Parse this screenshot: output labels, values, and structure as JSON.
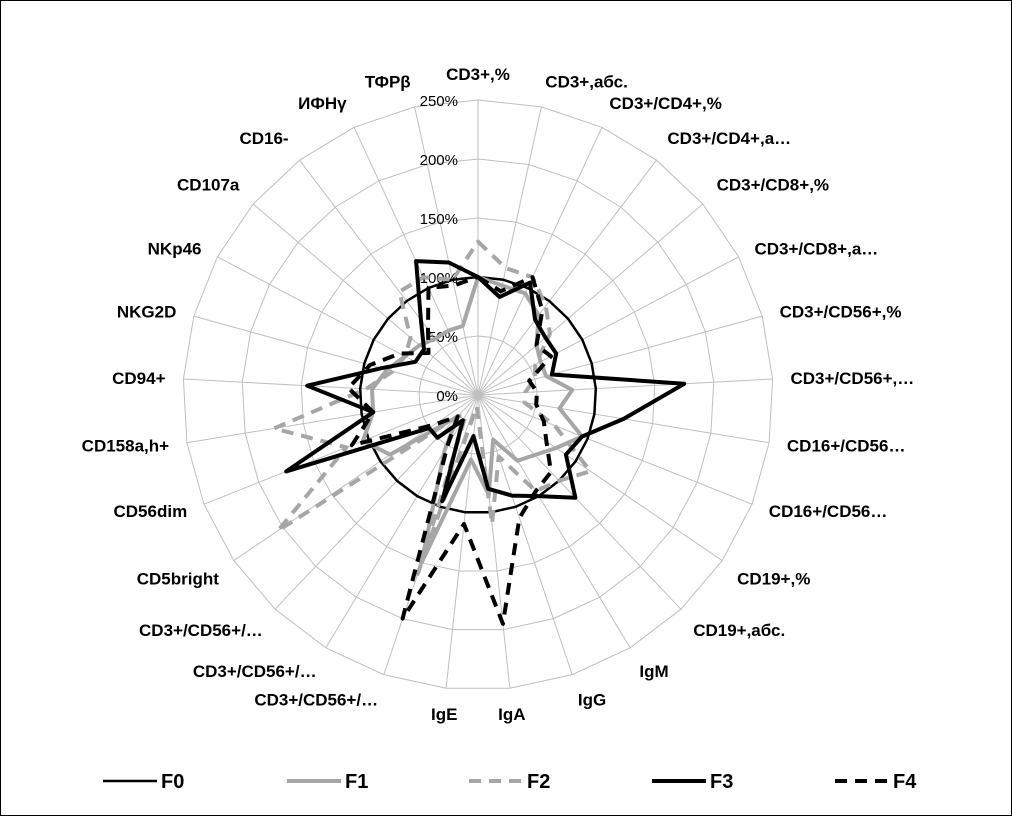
{
  "chart_data": {
    "type": "radar",
    "categories": [
      "CD3+,%",
      "CD3+,абс.",
      "CD3+/CD4+,%",
      "CD3+/CD4+,а…",
      "CD3+/CD8+,%",
      "CD3+/CD8+,а…",
      "CD3+/CD56+,%",
      "CD3+/CD56+,…",
      "CD16+/CD56…",
      "CD16+/CD56…",
      "CD19+,%",
      "CD19+,абс.",
      "IgM",
      "IgG",
      "IgA",
      "IgE",
      "CD3+/CD56+/…",
      "CD3+/CD56+/…",
      "CD3+/CD56+/…",
      "CD5bright",
      "CD56dim",
      "CD158a,h+",
      "CD94+",
      "NKG2D",
      "NKp46",
      "CD107a",
      "CD16-",
      "ИФНγ",
      "ТФРβ"
    ],
    "r_ticks": [
      "0%",
      "50%",
      "100%",
      "150%",
      "200%",
      "250%"
    ],
    "r_max": 250,
    "grid": true,
    "legend_position": "bottom",
    "series": [
      {
        "name": "F0",
        "color": "#000000",
        "style": "thin-solid",
        "values": [
          100,
          100,
          100,
          100,
          100,
          100,
          100,
          100,
          100,
          100,
          100,
          100,
          100,
          100,
          100,
          100,
          100,
          100,
          100,
          100,
          100,
          100,
          100,
          100,
          100,
          100,
          100,
          100,
          100
        ]
      },
      {
        "name": "F1",
        "color": "#a6a6a6",
        "style": "thick-solid",
        "values": [
          100,
          95,
          95,
          85,
          65,
          60,
          60,
          80,
          70,
          95,
          80,
          70,
          65,
          40,
          85,
          55,
          150,
          55,
          25,
          90,
          105,
          90,
          90,
          80,
          70,
          65,
          60,
          60,
          60
        ]
      },
      {
        "name": "F2",
        "color": "#a6a6a6",
        "style": "thick-dashed",
        "values": [
          130,
          110,
          110,
          95,
          80,
          55,
          50,
          40,
          40,
          70,
          115,
          100,
          95,
          55,
          110,
          10,
          160,
          20,
          25,
          205,
          120,
          175,
          95,
          75,
          70,
          75,
          110,
          110,
          100
        ]
      },
      {
        "name": "F3",
        "color": "#000000",
        "style": "thick-solid",
        "values": [
          100,
          85,
          105,
          80,
          75,
          75,
          65,
          175,
          125,
          95,
          90,
          120,
          100,
          90,
          80,
          35,
          95,
          25,
          50,
          50,
          175,
          90,
          145,
          85,
          60,
          60,
          80,
          125,
          115
        ]
      },
      {
        "name": "F4",
        "color": "#000000",
        "style": "thick-dashed",
        "values": [
          100,
          90,
          110,
          90,
          65,
          70,
          45,
          50,
          50,
          60,
          70,
          90,
          95,
          110,
          195,
          110,
          200,
          50,
          25,
          45,
          115,
          90,
          110,
          95,
          75,
          55,
          70,
          100,
          95
        ]
      }
    ]
  }
}
